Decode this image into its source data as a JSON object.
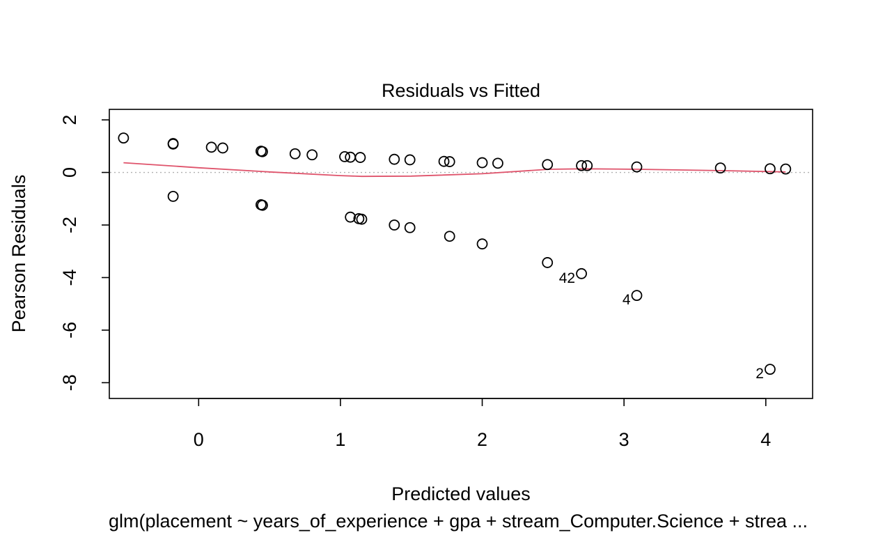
{
  "chart_data": {
    "type": "scatter",
    "title": "Residuals vs Fitted",
    "xlabel": "Predicted values",
    "ylabel": "Pearson Residuals",
    "subtitle": "glm(placement ~ years_of_experience + gpa + stream_Computer.Science + strea ...",
    "xlim": [
      -0.63,
      4.33
    ],
    "ylim": [
      -8.6,
      2.4
    ],
    "x_ticks": [
      0,
      1,
      2,
      3,
      4
    ],
    "y_ticks": [
      2,
      0,
      -2,
      -4,
      -6,
      -8
    ],
    "grid": false,
    "reference_line": {
      "y": 0,
      "style": "dotted",
      "color": "#b0b0b0"
    },
    "smooth_color": "#df536b",
    "point_color": "#000000",
    "points": [
      {
        "x": -0.53,
        "y": 1.31
      },
      {
        "x": -0.18,
        "y": 1.1
      },
      {
        "x": -0.18,
        "y": 1.08
      },
      {
        "x": 0.09,
        "y": 0.96
      },
      {
        "x": 0.17,
        "y": 0.93
      },
      {
        "x": 0.44,
        "y": 0.81
      },
      {
        "x": 0.45,
        "y": 0.79
      },
      {
        "x": 0.68,
        "y": 0.71
      },
      {
        "x": 0.8,
        "y": 0.67
      },
      {
        "x": 1.03,
        "y": 0.6
      },
      {
        "x": 1.07,
        "y": 0.58
      },
      {
        "x": 1.14,
        "y": 0.57
      },
      {
        "x": 1.38,
        "y": 0.5
      },
      {
        "x": 1.49,
        "y": 0.48
      },
      {
        "x": 1.73,
        "y": 0.42
      },
      {
        "x": 1.77,
        "y": 0.41
      },
      {
        "x": 2.0,
        "y": 0.37
      },
      {
        "x": 2.11,
        "y": 0.35
      },
      {
        "x": 2.46,
        "y": 0.3
      },
      {
        "x": 2.7,
        "y": 0.26
      },
      {
        "x": 2.74,
        "y": 0.26
      },
      {
        "x": 3.09,
        "y": 0.21
      },
      {
        "x": 3.68,
        "y": 0.17
      },
      {
        "x": 4.03,
        "y": 0.14
      },
      {
        "x": 4.14,
        "y": 0.13
      },
      {
        "x": -0.18,
        "y": -0.91
      },
      {
        "x": 0.44,
        "y": -1.23
      },
      {
        "x": 0.45,
        "y": -1.25
      },
      {
        "x": 1.07,
        "y": -1.7
      },
      {
        "x": 1.13,
        "y": -1.76
      },
      {
        "x": 1.15,
        "y": -1.78
      },
      {
        "x": 1.38,
        "y": -2.0
      },
      {
        "x": 1.49,
        "y": -2.1
      },
      {
        "x": 1.77,
        "y": -2.43
      },
      {
        "x": 2.0,
        "y": -2.72
      },
      {
        "x": 2.46,
        "y": -3.43
      },
      {
        "x": 2.7,
        "y": -3.85,
        "label": "42"
      },
      {
        "x": 3.09,
        "y": -4.68,
        "label": "4"
      },
      {
        "x": 4.03,
        "y": -7.49,
        "label": "2"
      }
    ],
    "smooth": {
      "x": [
        -0.53,
        0.0,
        0.5,
        1.0,
        1.15,
        1.5,
        2.0,
        2.47,
        2.72,
        3.1,
        3.68,
        4.14
      ],
      "y": [
        0.37,
        0.18,
        0.02,
        -0.12,
        -0.15,
        -0.14,
        -0.05,
        0.12,
        0.14,
        0.12,
        0.07,
        0.02
      ]
    }
  }
}
